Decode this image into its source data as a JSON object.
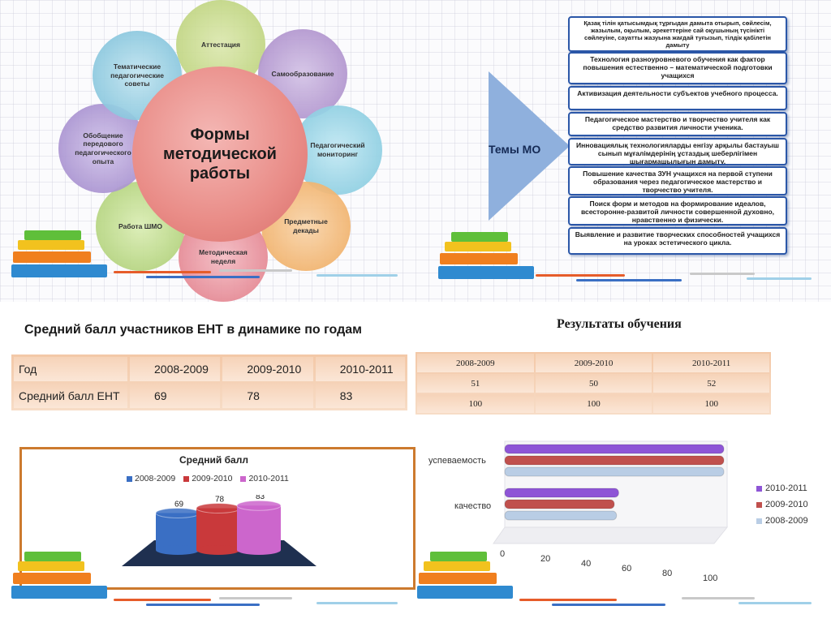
{
  "methodical": {
    "center": "Формы методической работы",
    "petals": [
      "Аттестация",
      "Самообразование",
      "Педагогический мониторинг",
      "Предметные декады",
      "Методическая неделя",
      "Работа ШМО",
      "Обобщение передового педагогического опыта",
      "Тематические педагогические советы"
    ],
    "colors": {
      "petal_1": "#c6d98a",
      "petal_2": "#b59ad0",
      "petal_3": "#8fd0e3",
      "petal_4": "#f2b877",
      "petal_5": "#e58d95",
      "petal_6": "#b5d47f",
      "petal_7": "#a891cf",
      "petal_8": "#8ac6dd",
      "center": "#e98c87"
    }
  },
  "topics": {
    "label": "Темы МО",
    "items": [
      "Қазақ тілін қатысымдық тұрғыдан дамыта отырып, сөйлесім, жазылым, оқылым, әрекеттеріне сай оқушының түсінікті сөйлеуіне, сауатты жазуына жағдай туғызып, тілдік қабілетін дамыту",
      "Технология разноуровневого обучения как фактор повышения естественно – математической подготовки учащихся",
      "Активизация деятельности субъектов учебного процесса.",
      "Педагогическое мастерство и творчество учителя как средство развития личности ученика.",
      "Инновациялық технологияларды енгізу арқылы бастауыш сынып мұғалімдерінің ұстаздық шеберлігімен шығармашылығын дамыту.",
      "Повышение качества ЗУН учащихся на первой ступени образования через педагогическое мастерство и творчество учителя.",
      "Поиск форм и методов на формирование идеалов, всесторонне-развитой личности совершенной духовно, нравственно и физически.",
      "Выявление и развитие творческих способностей учащихся на уроках эстетического цикла."
    ]
  },
  "ent": {
    "title": "Средний балл участников ЕНТ в динамике по годам",
    "header": [
      "Год",
      "2008-2009",
      "2009-2010",
      "2010-2011"
    ],
    "row": [
      "Средний балл ЕНТ",
      "69",
      "78",
      "83"
    ]
  },
  "results": {
    "title": "Результаты обучения",
    "header": [
      "2008-2009",
      "2009-2010",
      "2010-2011"
    ],
    "rows": [
      [
        "51",
        "50",
        "52"
      ],
      [
        "100",
        "100",
        "100"
      ]
    ]
  },
  "chart_data": [
    {
      "type": "bar",
      "title": "Средний балл",
      "categories": [
        "2008-2009",
        "2009-2010",
        "2010-2011"
      ],
      "values": [
        69,
        78,
        83
      ],
      "colors": [
        "#3a6fc4",
        "#c9393b",
        "#cc66cc"
      ],
      "legend": "top",
      "xlabel": "",
      "ylabel": ""
    },
    {
      "type": "bar",
      "orientation": "horizontal",
      "categories": [
        "качество",
        "успеваемость"
      ],
      "series": [
        {
          "name": "2010-2011",
          "values": [
            52,
            100
          ],
          "color": "#8e55d6"
        },
        {
          "name": "2009-2010",
          "values": [
            50,
            100
          ],
          "color": "#c0504d"
        },
        {
          "name": "2008-2009",
          "values": [
            51,
            100
          ],
          "color": "#b9cde5"
        }
      ],
      "xlim": [
        0,
        100
      ],
      "xticks": [
        "0",
        "20",
        "40",
        "60",
        "80",
        "100"
      ],
      "legend": "right"
    }
  ]
}
